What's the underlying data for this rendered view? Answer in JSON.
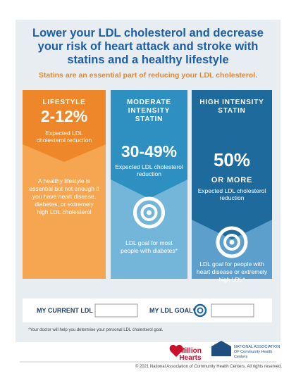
{
  "header": {
    "title": "Lower your LDL cholesterol and decrease your risk of heart attack and stroke with statins and a healthy lifestyle",
    "subtitle": "Statins are an essential part of reducing your LDL cholesterol."
  },
  "columns": [
    {
      "heading": "LIFESTYLE",
      "reduction": "2-12%",
      "caption": "Expected LDL cholesterol reduction",
      "body": "A healthy lifestyle is essential but not enough if you have heart disease, diabetes, or extremely high LDL cholesterol"
    },
    {
      "heading": "MODERATE INTENSITY STATIN",
      "reduction": "30-49%",
      "caption": "Expected LDL cholesterol reduction",
      "goal": "LDL goal for most people with diabetes*"
    },
    {
      "heading": "HIGH INTENSITY STATIN",
      "reduction": "50%",
      "reduction_note": "OR MORE",
      "caption": "Expected LDL cholesterol reduction",
      "goal": "LDL goal for people with heart disease or extremely high LDL*"
    }
  ],
  "form": {
    "current_label": "MY CURRENT LDL",
    "goal_label": "MY LDL GOAL*"
  },
  "footnote": "*Your doctor will help you determine your personal LDL cholesterol goal.",
  "logos": {
    "million_hearts": "Million Hearts",
    "nachc": "NATIONAL ASSOCIATION OF Community Health Centers"
  },
  "copyright": "© 2021 National Association of Community Health Centers. All rights reserved."
}
